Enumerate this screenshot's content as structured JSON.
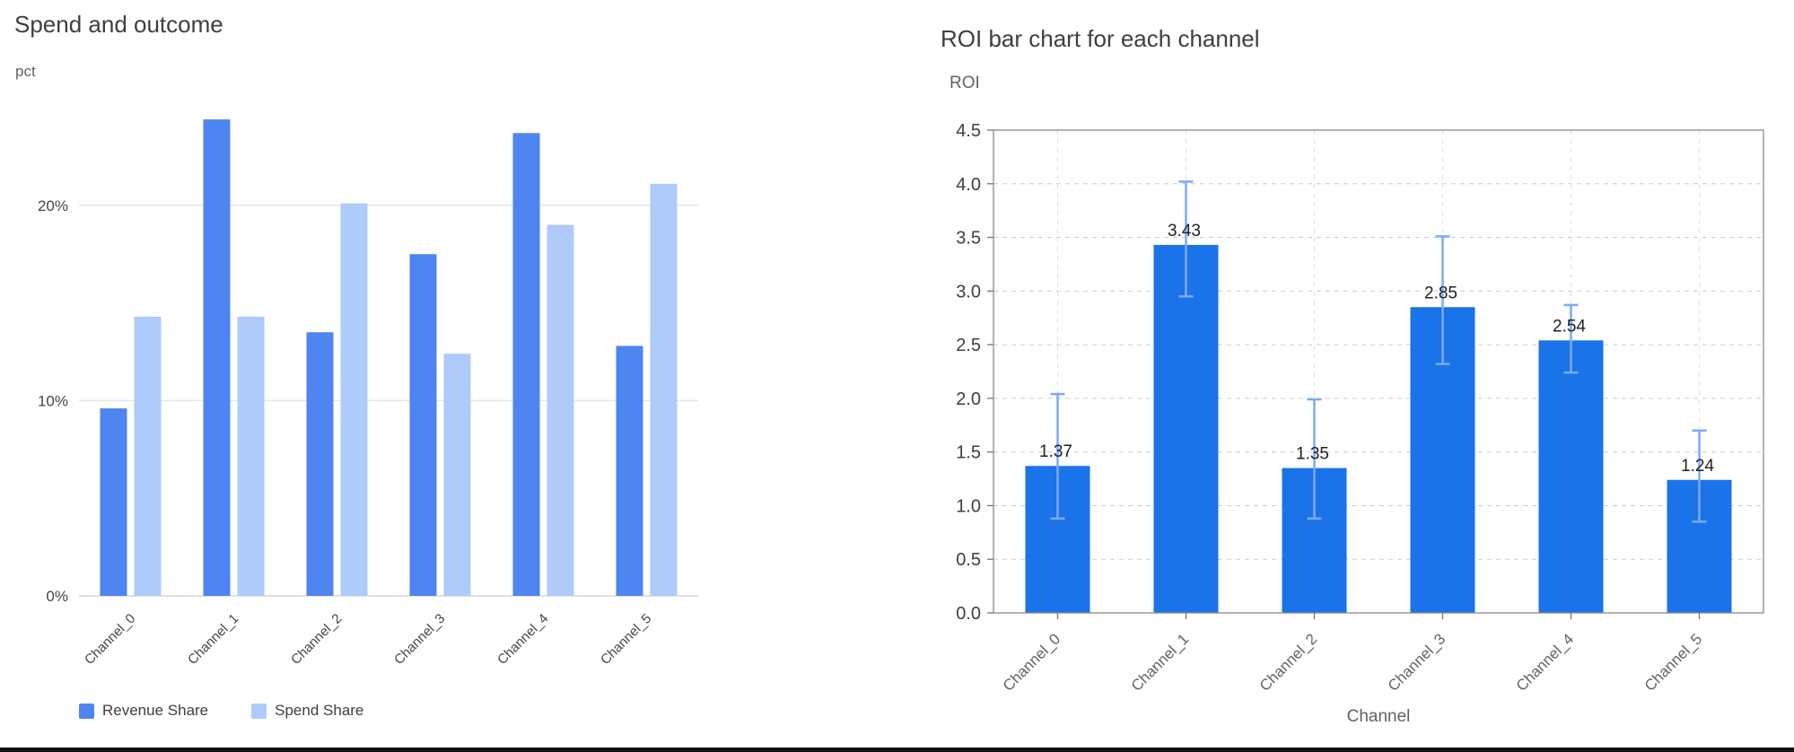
{
  "page": {
    "background": "#ffffff"
  },
  "chart_data": [
    {
      "id": "spend_and_outcome",
      "type": "bar",
      "title": "Spend and outcome",
      "ylabel": "pct",
      "xlabel": "",
      "categories": [
        "Channel_0",
        "Channel_1",
        "Channel_2",
        "Channel_3",
        "Channel_4",
        "Channel_5"
      ],
      "series": [
        {
          "name": "Revenue Share",
          "color": "#4e85f0",
          "values": [
            9.6,
            24.4,
            13.5,
            17.5,
            23.7,
            12.8
          ]
        },
        {
          "name": "Spend Share",
          "color": "#aecbfa",
          "values": [
            14.3,
            14.3,
            20.1,
            12.4,
            19.0,
            21.1
          ]
        }
      ],
      "ylim": [
        0,
        25
      ],
      "yticks": [
        0,
        10,
        20
      ],
      "ytick_labels": [
        "0%",
        "10%",
        "20%"
      ],
      "grid": "solid-horizontal",
      "legend_position": "bottom-left"
    },
    {
      "id": "roi_by_channel",
      "type": "bar",
      "title": "ROI bar chart for each channel",
      "ylabel": "ROI",
      "xlabel": "Channel",
      "categories": [
        "Channel_0",
        "Channel_1",
        "Channel_2",
        "Channel_3",
        "Channel_4",
        "Channel_5"
      ],
      "series": [
        {
          "name": "ROI",
          "color": "#1a73e8",
          "values": [
            1.37,
            3.43,
            1.35,
            2.85,
            2.54,
            1.24
          ]
        }
      ],
      "bar_labels": [
        "1.37",
        "3.43",
        "1.35",
        "2.85",
        "2.54",
        "1.24"
      ],
      "error_bars": {
        "color": "#7baaf7",
        "low": [
          0.88,
          2.95,
          0.88,
          2.32,
          2.24,
          0.85
        ],
        "high": [
          2.04,
          4.02,
          1.99,
          3.51,
          2.87,
          1.7
        ]
      },
      "ylim": [
        0,
        4.5
      ],
      "yticks": [
        0,
        0.5,
        1,
        1.5,
        2,
        2.5,
        3,
        3.5,
        4,
        4.5
      ],
      "ytick_labels": [
        "0.0",
        "0.5",
        "1.0",
        "1.5",
        "2.0",
        "2.5",
        "3.0",
        "3.5",
        "4.0",
        "4.5"
      ],
      "grid": "dashed-both",
      "legend_position": "none"
    }
  ]
}
